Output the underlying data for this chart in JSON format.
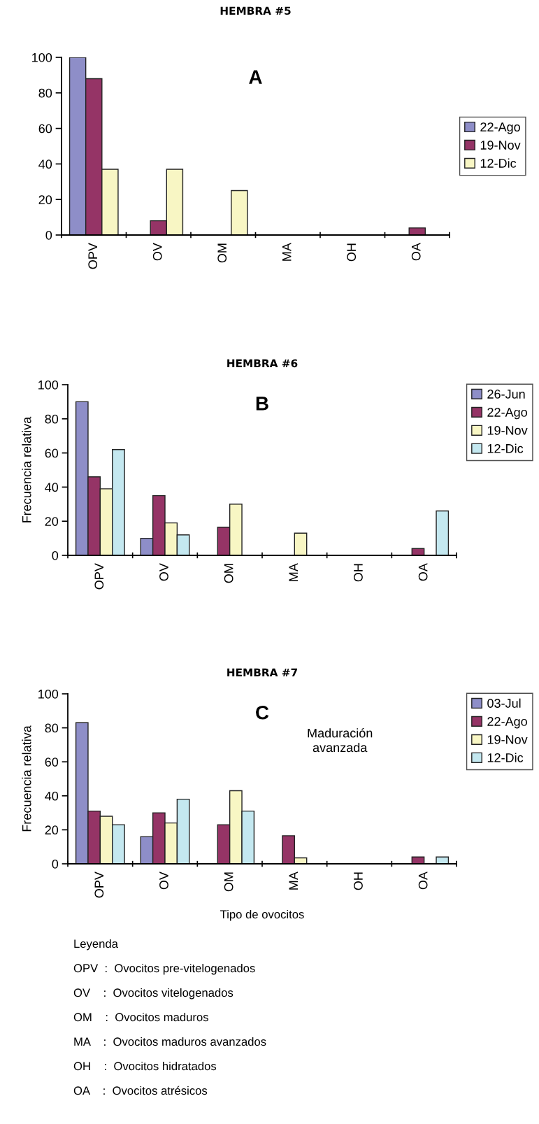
{
  "chart_data": [
    {
      "type": "bar",
      "title": "HEMBRA #5",
      "categories": [
        "OPV",
        "OV",
        "OM",
        "MA",
        "OH",
        "OA"
      ],
      "ylim": [
        0,
        100
      ],
      "yticks": [
        0,
        20,
        40,
        60,
        80,
        100
      ],
      "legend": "right",
      "annotations": [
        "A"
      ],
      "series": [
        {
          "name": "22-Ago",
          "color": "#8e8ec8",
          "values": [
            100,
            0,
            0,
            0,
            0,
            0
          ]
        },
        {
          "name": "19-Nov",
          "color": "#953466",
          "values": [
            88,
            8,
            0,
            0,
            0,
            4
          ]
        },
        {
          "name": "12-Dic",
          "color": "#f8f6c4",
          "values": [
            37,
            37,
            25,
            0,
            0,
            0
          ]
        }
      ]
    },
    {
      "type": "bar",
      "title": "HEMBRA #6",
      "ylabel": "Frecuencia relativa",
      "categories": [
        "OPV",
        "OV",
        "OM",
        "MA",
        "OH",
        "OA"
      ],
      "ylim": [
        0,
        100
      ],
      "yticks": [
        0,
        20,
        40,
        60,
        80,
        100
      ],
      "legend": "top right",
      "annotations": [
        "B"
      ],
      "series": [
        {
          "name": "26-Jun",
          "color": "#8e8ec8",
          "values": [
            90,
            10,
            0,
            0,
            0,
            0
          ]
        },
        {
          "name": "22-Ago",
          "color": "#953466",
          "values": [
            46,
            35,
            16.5,
            0,
            0,
            4
          ]
        },
        {
          "name": "19-Nov",
          "color": "#f8f6c4",
          "values": [
            39,
            19,
            30,
            13,
            0,
            0
          ]
        },
        {
          "name": "12-Dic",
          "color": "#c4e8f0",
          "values": [
            62,
            12,
            0,
            0,
            0,
            26
          ]
        }
      ]
    },
    {
      "type": "bar",
      "title": "HEMBRA #7",
      "ylabel": "Frecuencia relativa",
      "xlabel": "Tipo de ovocitos",
      "categories": [
        "OPV",
        "OV",
        "OM",
        "MA",
        "OH",
        "OA"
      ],
      "ylim": [
        0,
        100
      ],
      "yticks": [
        0,
        20,
        40,
        60,
        80,
        100
      ],
      "legend": "top right",
      "annotations": [
        "C",
        "Maduración\navanzada"
      ],
      "series": [
        {
          "name": "03-Jul",
          "color": "#8e8ec8",
          "values": [
            83,
            16,
            0,
            0,
            0,
            0
          ]
        },
        {
          "name": "22-Ago",
          "color": "#953466",
          "values": [
            31,
            30,
            23,
            16.5,
            0,
            4
          ]
        },
        {
          "name": "19-Nov",
          "color": "#f8f6c4",
          "values": [
            28,
            24,
            43,
            3.5,
            0,
            0
          ]
        },
        {
          "name": "12-Dic",
          "color": "#c4e8f0",
          "values": [
            23,
            38,
            31,
            0,
            0,
            4
          ]
        }
      ]
    },
    {
      "type": "other",
      "title": "Leyenda",
      "annotations": [
        "OPV  :  Ovocitos pre-vitelogenados",
        "OV    :  Ovocitos vitelogenados",
        "OM    :  Ovocitos maduros",
        "MA    :  Ovocitos maduros avanzados",
        "OH    :  Ovocitos hidratados",
        "OA    :  Ovocitos atrésicos"
      ]
    }
  ]
}
